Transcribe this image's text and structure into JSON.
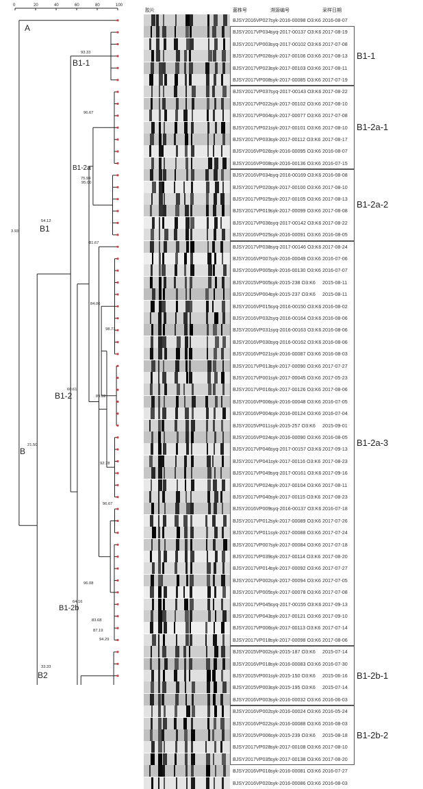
{
  "scale": {
    "ticks": [
      "0",
      "20",
      "40",
      "60",
      "80",
      "100"
    ]
  },
  "headers": {
    "gel": "胶片",
    "strain": "菌株号",
    "tracing": "溯源编号",
    "date": "采样日期"
  },
  "rows": [
    {
      "id": "BJSY2016VP027",
      "code": "syk-2016-00098 O3:K6",
      "date": "2016-08-07"
    },
    {
      "id": "BJSY2017VP034",
      "code": "syq-2017-00137 O3:K6",
      "date": "2017-08-19"
    },
    {
      "id": "BJSY2017VP003",
      "code": "syq-2017-00102 O3:K6",
      "date": "2017-07-08"
    },
    {
      "id": "BJSY2017VP026",
      "code": "syk-2017-00106 O3:K6",
      "date": "2017-08-13"
    },
    {
      "id": "BJSY2017VP023",
      "code": "syk-2017-00103 O3:K6",
      "date": "2017-08-11"
    },
    {
      "id": "BJSY2017VP008",
      "code": "syk-2017-00085 O3:K6",
      "date": "2017-07-19"
    },
    {
      "id": "BJSY2017VP037",
      "code": "syq-2017-00143 O3:K6",
      "date": "2017-08-22"
    },
    {
      "id": "BJSY2017VP022",
      "code": "syk-2017-00102 O3:K6",
      "date": "2017-08-10"
    },
    {
      "id": "BJSY2017VP004",
      "code": "syk-2017-00077 O3:K6",
      "date": "2017-07-08"
    },
    {
      "id": "BJSY2017VP021",
      "code": "syk-2017-00101 O3:K6",
      "date": "2017-08-10"
    },
    {
      "id": "BJSY2017VP033",
      "code": "syk-2017-00112 O3:K6",
      "date": "2017-08-17"
    },
    {
      "id": "BJSY2016VP026",
      "code": "syk-2016-00095 O3:K6",
      "date": "2016-08-07"
    },
    {
      "id": "BJSY2016VP008",
      "code": "syk-2016-00136 O3:K6",
      "date": "2016-07-15"
    },
    {
      "id": "BJSY2016VP034",
      "code": "syq-2016-00169 O3:K6",
      "date": "2016-08-08"
    },
    {
      "id": "BJSY2017VP020",
      "code": "syk-2017-00100 O3:K6",
      "date": "2017-08-10"
    },
    {
      "id": "BJSY2017VP025",
      "code": "syk-2017-00105 O3:K6",
      "date": "2017-08-13"
    },
    {
      "id": "BJSY2017VP019",
      "code": "syk-2017-00099 O3:K6",
      "date": "2017-08-08"
    },
    {
      "id": "BJSY2017VP036",
      "code": "syq-2017-00142 O3:K6",
      "date": "2017-08-22"
    },
    {
      "id": "BJSY2016VP025",
      "code": "syk-2016-00091 O3:K6",
      "date": "2016-08-05"
    },
    {
      "id": "BJSY2017VP038",
      "code": "syq-2017-00146 O3:K6",
      "date": "2017-08-24"
    },
    {
      "id": "BJSY2016VP007",
      "code": "syk-2016-00049 O3:K6",
      "date": "2016-07-06"
    },
    {
      "id": "BJSY2016VP005",
      "code": "syk-2016-00130 O3:K6",
      "date": "2016-07-07"
    },
    {
      "id": "BJSY2015VP005",
      "code": "syk-2015-238 O3:K6",
      "date": "2015-08-11"
    },
    {
      "id": "BJSY2015VP004",
      "code": "syk-2015-237 O3:K6",
      "date": "2015-08-11"
    },
    {
      "id": "BJSY2016VP015",
      "code": "syq-2016-00150 O3:K6",
      "date": "2016-08-02"
    },
    {
      "id": "BJSY2016VP032",
      "code": "syq-2016-00164 O3:K6",
      "date": "2016-08-06"
    },
    {
      "id": "BJSY2016VP031",
      "code": "syq-2016-00163 O3:K6",
      "date": "2016-08-06"
    },
    {
      "id": "BJSY2016VP030",
      "code": "syq-2016-00162 O3:K6",
      "date": "2016-08-06"
    },
    {
      "id": "BJSY2016VP021",
      "code": "syk-2016-00087 O3:K6",
      "date": "2016-08-03"
    },
    {
      "id": "BJSY2017VP013",
      "code": "syk-2017-00090 O3:K6",
      "date": "2017-07-27"
    },
    {
      "id": "BJSY2017VP001",
      "code": "syk-2017-00045 O3:K6",
      "date": "2017-05-23"
    },
    {
      "id": "BJSY2017VP016",
      "code": "syk-2017-00126 O3:K6",
      "date": "2017-08-06"
    },
    {
      "id": "BJSY2016VP006",
      "code": "syk-2016-00048 O3:K6",
      "date": "2016-07-05"
    },
    {
      "id": "BJSY2016VP004",
      "code": "syk-2016-00124 O3:K6",
      "date": "2016-07-04"
    },
    {
      "id": "BJSY2015VP011",
      "code": "syk-2015-257 O3:K6",
      "date": "2015-09-01"
    },
    {
      "id": "BJSY2016VP024",
      "code": "syk-2016-00090 O3:K6",
      "date": "2016-08-05"
    },
    {
      "id": "BJSY2017VP046",
      "code": "syq-2017-00157 O3:K6",
      "date": "2017-09-13"
    },
    {
      "id": "BJSY2017VP041",
      "code": "syk-2017-00116 O3:K6",
      "date": "2017-08-23"
    },
    {
      "id": "BJSY2017VP049",
      "code": "syq-2017-00161 O3:K6",
      "date": "2017-09-16"
    },
    {
      "id": "BJSY2017VP024",
      "code": "syk-2017-00104 O3:K6",
      "date": "2017-08-11"
    },
    {
      "id": "BJSY2017VP040",
      "code": "syk-2017-00115 O3:K6",
      "date": "2017-08-23"
    },
    {
      "id": "BJSY2016VP009",
      "code": "syq-2016-00137 O3:K6",
      "date": "2016-07-18"
    },
    {
      "id": "BJSY2017VP012",
      "code": "syk-2017-00089 O3:K6",
      "date": "2017-07-26"
    },
    {
      "id": "BJSY2017VP011",
      "code": "syk-2017-00088 O3:K6",
      "date": "2017-07-24"
    },
    {
      "id": "BJSY2017VP007",
      "code": "syk-2017-00084 O3:K6",
      "date": "2017-07-18"
    },
    {
      "id": "BJSY2017VP039",
      "code": "syk-2017-00114 O3:K6",
      "date": "2017-08-20"
    },
    {
      "id": "BJSY2017VP014",
      "code": "syk-2017-00092 O3:K6",
      "date": "2017-07-27"
    },
    {
      "id": "BJSY2017VP002",
      "code": "syk-2017-00094 O3:K6",
      "date": "2017-07-05"
    },
    {
      "id": "BJSY2017VP005",
      "code": "syk-2017-00078 O3:K6",
      "date": "2017-07-08"
    },
    {
      "id": "BJSY2017VP045",
      "code": "syq-2017-00155 O3:K6",
      "date": "2017-09-13"
    },
    {
      "id": "BJSY2017VP043",
      "code": "syk-2017-00121 O3:K6",
      "date": "2017-09-10"
    },
    {
      "id": "BJSY2017VP006",
      "code": "syk-2017-00113 O3:K6",
      "date": "2017-07-14"
    },
    {
      "id": "BJSY2017VP018",
      "code": "syk-2017-00098 O3:K6",
      "date": "2017-08-06"
    },
    {
      "id": "BJSY2015VP002",
      "code": "syk-2015-187 O3:K6",
      "date": "2015-07-14"
    },
    {
      "id": "BJSY2016VP018",
      "code": "syk-2016-00083 O3:K6",
      "date": "2016-07-30"
    },
    {
      "id": "BJSY2015VP001",
      "code": "syk-2015-150 O3:K6",
      "date": "2015-06-16"
    },
    {
      "id": "BJSY2015VP003",
      "code": "syk-2015-195 O3:K6",
      "date": "2015-07-14"
    },
    {
      "id": "BJSY2016VP003",
      "code": "syk-2016-00032 O3:K6",
      "date": "2016-06-03"
    },
    {
      "id": "BJSY2016VP002",
      "code": "syk-2016-00024 O3:K6",
      "date": "2016-05-24"
    },
    {
      "id": "BJSY2016VP022",
      "code": "syk-2016-00088 O3:K6",
      "date": "2016-08-03"
    },
    {
      "id": "BJSY2015VP006",
      "code": "syk-2015-239 O3:K6",
      "date": "2015-08-18"
    },
    {
      "id": "BJSY2017VP028",
      "code": "syk-2017-00108 O3:K6",
      "date": "2017-08-10"
    },
    {
      "id": "BJSY2017VP035",
      "code": "syk-2017-00138 O3:K6",
      "date": "2017-08-20"
    },
    {
      "id": "BJSY2016VP016",
      "code": "syk-2016-00081 O3:K6",
      "date": "2016-07-27"
    },
    {
      "id": "BJSY2016VP020",
      "code": "syk-2016-00086 O3:K6",
      "date": "2016-08-03"
    }
  ],
  "groups": [
    {
      "label": "B1-1",
      "start": 1,
      "end": 5
    },
    {
      "label": "B1-2a-1",
      "start": 6,
      "end": 12
    },
    {
      "label": "B1-2a-2",
      "start": 13,
      "end": 18
    },
    {
      "label": "B1-2a-3",
      "start": 19,
      "end": 52
    },
    {
      "label": "B1-2b-1",
      "start": 53,
      "end": 57
    },
    {
      "label": "B1-2b-2",
      "start": 58,
      "end": 62
    }
  ],
  "clusters": [
    {
      "label": "A"
    },
    {
      "label": "B"
    },
    {
      "label": "B1"
    },
    {
      "label": "B1-1"
    },
    {
      "label": "B1-2"
    },
    {
      "label": "B1-2a"
    },
    {
      "label": "B1-2b"
    },
    {
      "label": "B2"
    }
  ],
  "similarities": [
    "93.33",
    "96.67",
    "95.00",
    "75.94",
    "81.67",
    "84.06",
    "98.73",
    "89.32",
    "92.78",
    "96.67",
    "54.12",
    "60.61",
    "64.16",
    "96.08",
    "83.68",
    "87.19",
    "94.29",
    "33.33",
    "21.50",
    "3.93"
  ]
}
